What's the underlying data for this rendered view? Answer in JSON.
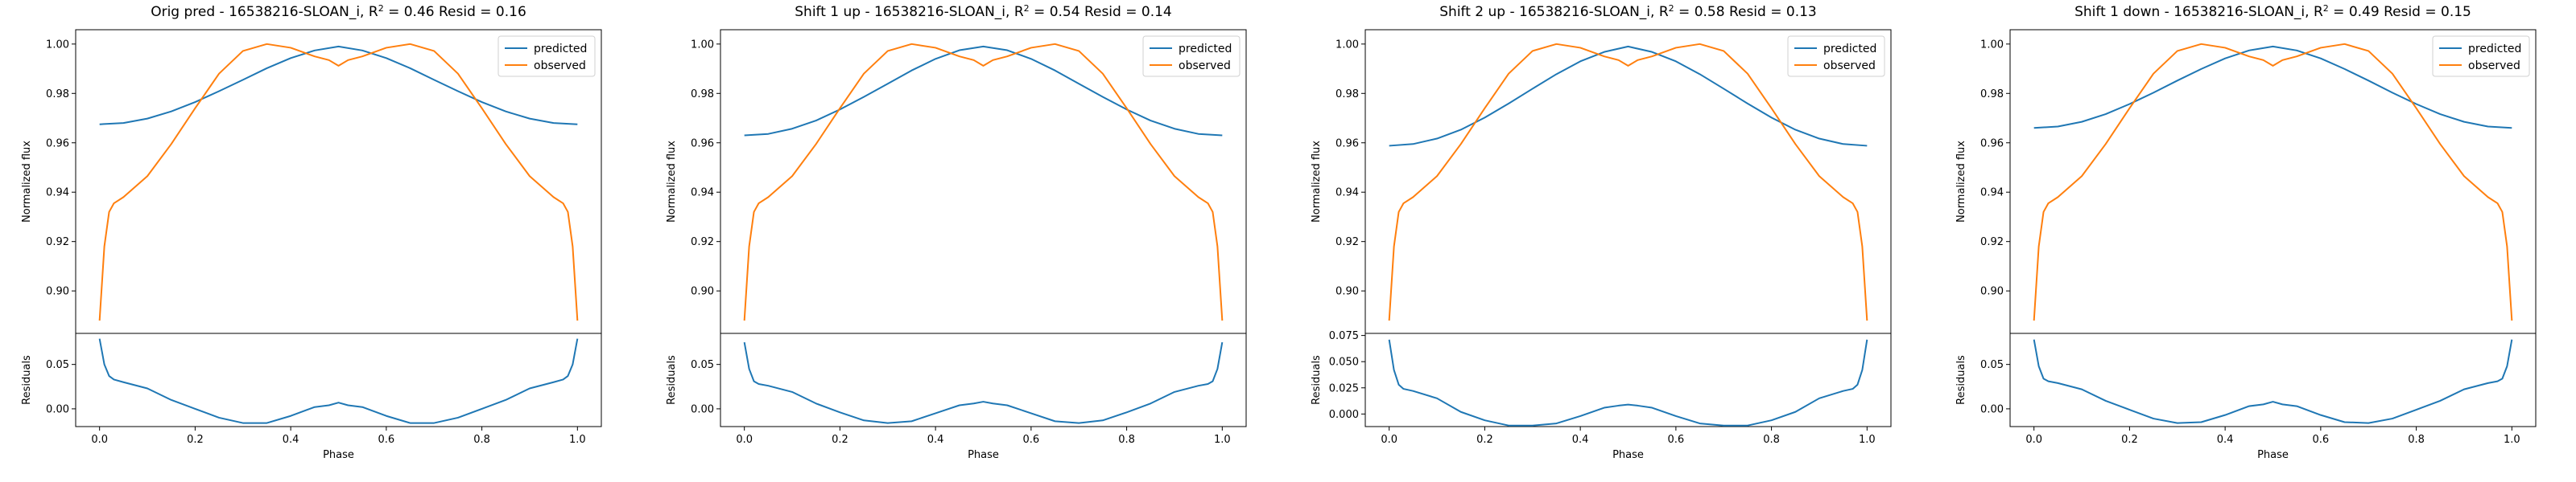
{
  "chart_data": [
    {
      "type": "line",
      "title": "Orig pred - 16538216-SLOAN_i, $R^2 = 0.46$ Resid = 0.16",
      "title_parts": {
        "prefix": "Orig pred - 16538216-SLOAN_i, ",
        "r2": "0.46",
        "resid": "0.16"
      },
      "xlabel": "Phase",
      "ylabel": "Normalized flux",
      "resid_ylabel": "Residuals",
      "xlim": [
        -0.05,
        1.05
      ],
      "ylim": [
        0.8828,
        1.0058
      ],
      "yticks": [
        0.9,
        0.92,
        0.94,
        0.96,
        0.98,
        1.0
      ],
      "yticklabels": [
        "0.90",
        "0.92",
        "0.94",
        "0.96",
        "0.98",
        "1.00"
      ],
      "resid_ylim": [
        -0.02,
        0.085
      ],
      "resid_yticks": [
        0.0,
        0.05
      ],
      "resid_yticklabels": [
        "0.00",
        "0.05"
      ],
      "xticks": [
        0.0,
        0.2,
        0.4,
        0.6,
        0.8,
        1.0
      ],
      "xticklabels": [
        "0.0",
        "0.2",
        "0.4",
        "0.6",
        "0.8",
        "1.0"
      ],
      "legend": "upper right",
      "series": [
        {
          "name": "predicted",
          "color": "#1f77b4",
          "x": [
            0.0,
            0.05,
            0.1,
            0.15,
            0.2,
            0.25,
            0.3,
            0.35,
            0.4,
            0.45,
            0.5,
            0.55,
            0.6,
            0.65,
            0.7,
            0.75,
            0.8,
            0.85,
            0.9,
            0.95,
            1.0
          ],
          "y": [
            0.9675,
            0.968,
            0.9698,
            0.9727,
            0.9765,
            0.9809,
            0.9855,
            0.9902,
            0.9943,
            0.9974,
            0.999,
            0.9974,
            0.9943,
            0.9902,
            0.9855,
            0.9809,
            0.9765,
            0.9727,
            0.9698,
            0.968,
            0.9675
          ]
        },
        {
          "name": "observed",
          "color": "#ff7f0e",
          "x": [
            0.0,
            0.01,
            0.02,
            0.03,
            0.05,
            0.1,
            0.15,
            0.2,
            0.25,
            0.3,
            0.35,
            0.4,
            0.45,
            0.48,
            0.5,
            0.52,
            0.55,
            0.6,
            0.65,
            0.7,
            0.75,
            0.8,
            0.85,
            0.9,
            0.95,
            0.97,
            0.98,
            0.99,
            1.0
          ],
          "y": [
            0.888,
            0.918,
            0.932,
            0.9355,
            0.938,
            0.9465,
            0.9595,
            0.974,
            0.988,
            0.9972,
            1.0,
            0.9985,
            0.995,
            0.9935,
            0.9912,
            0.9935,
            0.995,
            0.9985,
            1.0,
            0.9972,
            0.988,
            0.974,
            0.9595,
            0.9465,
            0.938,
            0.9355,
            0.932,
            0.918,
            0.888
          ]
        }
      ],
      "residuals": {
        "color": "#1f77b4",
        "x": [
          0.0,
          0.01,
          0.02,
          0.03,
          0.05,
          0.1,
          0.15,
          0.2,
          0.25,
          0.3,
          0.35,
          0.4,
          0.45,
          0.48,
          0.5,
          0.52,
          0.55,
          0.6,
          0.65,
          0.7,
          0.75,
          0.8,
          0.85,
          0.9,
          0.95,
          0.97,
          0.98,
          0.99,
          1.0
        ],
        "y": [
          0.079,
          0.05,
          0.037,
          0.033,
          0.03,
          0.023,
          0.01,
          0.0,
          -0.01,
          -0.016,
          -0.016,
          -0.008,
          0.002,
          0.004,
          0.007,
          0.004,
          0.002,
          -0.008,
          -0.016,
          -0.016,
          -0.01,
          0.0,
          0.01,
          0.023,
          0.03,
          0.033,
          0.037,
          0.05,
          0.079
        ]
      }
    },
    {
      "type": "line",
      "title": "Shift 1 up - 16538216-SLOAN_i, $R^2 = 0.54$ Resid = 0.14",
      "title_parts": {
        "prefix": "Shift 1 up - 16538216-SLOAN_i, ",
        "r2": "0.54",
        "resid": "0.14"
      },
      "xlabel": "Phase",
      "ylabel": "Normalized flux",
      "resid_ylabel": "Residuals",
      "xlim": [
        -0.05,
        1.05
      ],
      "ylim": [
        0.8828,
        1.0058
      ],
      "yticks": [
        0.9,
        0.92,
        0.94,
        0.96,
        0.98,
        1.0
      ],
      "yticklabels": [
        "0.90",
        "0.92",
        "0.94",
        "0.96",
        "0.98",
        "1.00"
      ],
      "resid_ylim": [
        -0.02,
        0.085
      ],
      "resid_yticks": [
        0.0,
        0.05
      ],
      "resid_yticklabels": [
        "0.00",
        "0.05"
      ],
      "xticks": [
        0.0,
        0.2,
        0.4,
        0.6,
        0.8,
        1.0
      ],
      "xticklabels": [
        "0.0",
        "0.2",
        "0.4",
        "0.6",
        "0.8",
        "1.0"
      ],
      "legend": "upper right",
      "series": [
        {
          "name": "predicted",
          "color": "#1f77b4",
          "x": [
            0.0,
            0.05,
            0.1,
            0.15,
            0.2,
            0.25,
            0.3,
            0.35,
            0.4,
            0.45,
            0.5,
            0.55,
            0.6,
            0.65,
            0.7,
            0.75,
            0.8,
            0.85,
            0.9,
            0.95,
            1.0
          ],
          "y": [
            0.963,
            0.9636,
            0.9657,
            0.969,
            0.9735,
            0.9786,
            0.9839,
            0.9893,
            0.994,
            0.9975,
            0.999,
            0.9975,
            0.994,
            0.9893,
            0.9839,
            0.9786,
            0.9735,
            0.969,
            0.9657,
            0.9636,
            0.963
          ]
        },
        {
          "name": "observed",
          "color": "#ff7f0e",
          "x": [
            0.0,
            0.01,
            0.02,
            0.03,
            0.05,
            0.1,
            0.15,
            0.2,
            0.25,
            0.3,
            0.35,
            0.4,
            0.45,
            0.48,
            0.5,
            0.52,
            0.55,
            0.6,
            0.65,
            0.7,
            0.75,
            0.8,
            0.85,
            0.9,
            0.95,
            0.97,
            0.98,
            0.99,
            1.0
          ],
          "y": [
            0.888,
            0.918,
            0.932,
            0.9355,
            0.938,
            0.9465,
            0.9595,
            0.974,
            0.988,
            0.9972,
            1.0,
            0.9985,
            0.995,
            0.9935,
            0.9912,
            0.9935,
            0.995,
            0.9985,
            1.0,
            0.9972,
            0.988,
            0.974,
            0.9595,
            0.9465,
            0.938,
            0.9355,
            0.932,
            0.918,
            0.888
          ]
        }
      ],
      "residuals": {
        "color": "#1f77b4",
        "x": [
          0.0,
          0.01,
          0.02,
          0.03,
          0.05,
          0.1,
          0.15,
          0.2,
          0.25,
          0.3,
          0.35,
          0.4,
          0.45,
          0.48,
          0.5,
          0.52,
          0.55,
          0.6,
          0.65,
          0.7,
          0.75,
          0.8,
          0.85,
          0.9,
          0.95,
          0.97,
          0.98,
          0.99,
          1.0
        ],
        "y": [
          0.075,
          0.045,
          0.031,
          0.028,
          0.026,
          0.019,
          0.006,
          -0.004,
          -0.013,
          -0.016,
          -0.014,
          -0.005,
          0.004,
          0.006,
          0.008,
          0.006,
          0.004,
          -0.005,
          -0.014,
          -0.016,
          -0.013,
          -0.004,
          0.006,
          0.019,
          0.026,
          0.028,
          0.031,
          0.045,
          0.075
        ]
      }
    },
    {
      "type": "line",
      "title": "Shift 2 up - 16538216-SLOAN_i, $R^2 = 0.58$ Resid = 0.13",
      "title_parts": {
        "prefix": "Shift 2 up - 16538216-SLOAN_i, ",
        "r2": "0.58",
        "resid": "0.13"
      },
      "xlabel": "Phase",
      "ylabel": "Normalized flux",
      "resid_ylabel": "Residuals",
      "xlim": [
        -0.05,
        1.05
      ],
      "ylim": [
        0.8828,
        1.0058
      ],
      "yticks": [
        0.9,
        0.92,
        0.94,
        0.96,
        0.98,
        1.0
      ],
      "yticklabels": [
        "0.90",
        "0.92",
        "0.94",
        "0.96",
        "0.98",
        "1.00"
      ],
      "resid_ylim": [
        -0.012,
        0.077
      ],
      "resid_yticks": [
        0.0,
        0.025,
        0.05,
        0.075
      ],
      "resid_yticklabels": [
        "0.000",
        "0.025",
        "0.050",
        "0.075"
      ],
      "xticks": [
        0.0,
        0.2,
        0.4,
        0.6,
        0.8,
        1.0
      ],
      "xticklabels": [
        "0.0",
        "0.2",
        "0.4",
        "0.6",
        "0.8",
        "1.0"
      ],
      "legend": "upper right",
      "series": [
        {
          "name": "predicted",
          "color": "#1f77b4",
          "x": [
            0.0,
            0.05,
            0.1,
            0.15,
            0.2,
            0.25,
            0.3,
            0.35,
            0.4,
            0.45,
            0.5,
            0.55,
            0.6,
            0.65,
            0.7,
            0.75,
            0.8,
            0.85,
            0.9,
            0.95,
            1.0
          ],
          "y": [
            0.9588,
            0.9595,
            0.9617,
            0.9653,
            0.9702,
            0.9759,
            0.9819,
            0.9878,
            0.993,
            0.9968,
            0.999,
            0.9968,
            0.993,
            0.9878,
            0.9819,
            0.9759,
            0.9702,
            0.9653,
            0.9617,
            0.9595,
            0.9588
          ]
        },
        {
          "name": "observed",
          "color": "#ff7f0e",
          "x": [
            0.0,
            0.01,
            0.02,
            0.03,
            0.05,
            0.1,
            0.15,
            0.2,
            0.25,
            0.3,
            0.35,
            0.4,
            0.45,
            0.48,
            0.5,
            0.52,
            0.55,
            0.6,
            0.65,
            0.7,
            0.75,
            0.8,
            0.85,
            0.9,
            0.95,
            0.97,
            0.98,
            0.99,
            1.0
          ],
          "y": [
            0.888,
            0.918,
            0.932,
            0.9355,
            0.938,
            0.9465,
            0.9595,
            0.974,
            0.988,
            0.9972,
            1.0,
            0.9985,
            0.995,
            0.9935,
            0.9912,
            0.9935,
            0.995,
            0.9985,
            1.0,
            0.9972,
            0.988,
            0.974,
            0.9595,
            0.9465,
            0.938,
            0.9355,
            0.932,
            0.918,
            0.888
          ]
        }
      ],
      "residuals": {
        "color": "#1f77b4",
        "x": [
          0.0,
          0.01,
          0.02,
          0.03,
          0.05,
          0.1,
          0.15,
          0.2,
          0.25,
          0.3,
          0.35,
          0.4,
          0.45,
          0.48,
          0.5,
          0.52,
          0.55,
          0.6,
          0.65,
          0.7,
          0.75,
          0.8,
          0.85,
          0.9,
          0.95,
          0.97,
          0.98,
          0.99,
          1.0
        ],
        "y": [
          0.071,
          0.042,
          0.028,
          0.024,
          0.022,
          0.015,
          0.002,
          -0.006,
          -0.011,
          -0.011,
          -0.009,
          -0.002,
          0.006,
          0.008,
          0.009,
          0.008,
          0.006,
          -0.002,
          -0.009,
          -0.011,
          -0.011,
          -0.006,
          0.002,
          0.015,
          0.022,
          0.024,
          0.028,
          0.042,
          0.071
        ]
      }
    },
    {
      "type": "line",
      "title": "Shift 1 down - 16538216-SLOAN_i, $R^2 = 0.49$ Resid = 0.15",
      "title_parts": {
        "prefix": "Shift 1 down - 16538216-SLOAN_i, ",
        "r2": "0.49",
        "resid": "0.15"
      },
      "xlabel": "Phase",
      "ylabel": "Normalized flux",
      "resid_ylabel": "Residuals",
      "xlim": [
        -0.05,
        1.05
      ],
      "ylim": [
        0.8828,
        1.0058
      ],
      "yticks": [
        0.9,
        0.92,
        0.94,
        0.96,
        0.98,
        1.0
      ],
      "yticklabels": [
        "0.90",
        "0.92",
        "0.94",
        "0.96",
        "0.98",
        "1.00"
      ],
      "resid_ylim": [
        -0.02,
        0.085
      ],
      "resid_yticks": [
        0.0,
        0.05
      ],
      "resid_yticklabels": [
        "0.00",
        "0.05"
      ],
      "xticks": [
        0.0,
        0.2,
        0.4,
        0.6,
        0.8,
        1.0
      ],
      "xticklabels": [
        "0.0",
        "0.2",
        "0.4",
        "0.6",
        "0.8",
        "1.0"
      ],
      "legend": "upper right",
      "series": [
        {
          "name": "predicted",
          "color": "#1f77b4",
          "x": [
            0.0,
            0.05,
            0.1,
            0.15,
            0.2,
            0.25,
            0.3,
            0.35,
            0.4,
            0.45,
            0.5,
            0.55,
            0.6,
            0.65,
            0.7,
            0.75,
            0.8,
            0.85,
            0.9,
            0.95,
            1.0
          ],
          "y": [
            0.966,
            0.9666,
            0.9685,
            0.9716,
            0.9757,
            0.9803,
            0.9852,
            0.9899,
            0.9942,
            0.9974,
            0.999,
            0.9974,
            0.9942,
            0.9899,
            0.9852,
            0.9803,
            0.9757,
            0.9716,
            0.9685,
            0.9666,
            0.966
          ]
        },
        {
          "name": "observed",
          "color": "#ff7f0e",
          "x": [
            0.0,
            0.01,
            0.02,
            0.03,
            0.05,
            0.1,
            0.15,
            0.2,
            0.25,
            0.3,
            0.35,
            0.4,
            0.45,
            0.48,
            0.5,
            0.52,
            0.55,
            0.6,
            0.65,
            0.7,
            0.75,
            0.8,
            0.85,
            0.9,
            0.95,
            0.97,
            0.98,
            0.99,
            1.0
          ],
          "y": [
            0.888,
            0.918,
            0.932,
            0.9355,
            0.938,
            0.9465,
            0.9595,
            0.974,
            0.988,
            0.9972,
            1.0,
            0.9985,
            0.995,
            0.9935,
            0.9912,
            0.9935,
            0.995,
            0.9985,
            1.0,
            0.9972,
            0.988,
            0.974,
            0.9595,
            0.9465,
            0.938,
            0.9355,
            0.932,
            0.918,
            0.888
          ]
        }
      ],
      "residuals": {
        "color": "#1f77b4",
        "x": [
          0.0,
          0.01,
          0.02,
          0.03,
          0.05,
          0.1,
          0.15,
          0.2,
          0.25,
          0.3,
          0.35,
          0.4,
          0.45,
          0.48,
          0.5,
          0.52,
          0.55,
          0.6,
          0.65,
          0.7,
          0.75,
          0.8,
          0.85,
          0.9,
          0.95,
          0.97,
          0.98,
          0.99,
          1.0
        ],
        "y": [
          0.078,
          0.048,
          0.034,
          0.031,
          0.029,
          0.022,
          0.009,
          -0.001,
          -0.011,
          -0.016,
          -0.015,
          -0.007,
          0.003,
          0.005,
          0.008,
          0.005,
          0.003,
          -0.007,
          -0.015,
          -0.016,
          -0.011,
          -0.001,
          0.009,
          0.022,
          0.029,
          0.031,
          0.034,
          0.048,
          0.078
        ]
      }
    }
  ]
}
